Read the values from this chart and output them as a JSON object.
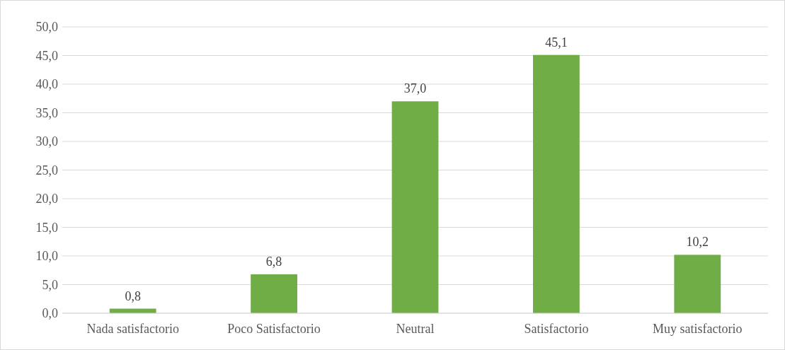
{
  "chart_data": {
    "type": "bar",
    "categories": [
      "Nada satisfactorio",
      "Poco Satisfactorio",
      "Neutral",
      "Satisfactorio",
      "Muy satisfactorio"
    ],
    "values": [
      0.8,
      6.8,
      37.0,
      45.1,
      10.2
    ],
    "value_labels": [
      "0,8",
      "6,8",
      "37,0",
      "45,1",
      "10,2"
    ],
    "color": "#70ad47",
    "ylim": [
      0,
      50
    ],
    "yticks": [
      {
        "value": 0,
        "label": "0,0"
      },
      {
        "value": 5,
        "label": "5,0"
      },
      {
        "value": 10,
        "label": "10,0"
      },
      {
        "value": 15,
        "label": "15,0"
      },
      {
        "value": 20,
        "label": "20,0"
      },
      {
        "value": 25,
        "label": "25,0"
      },
      {
        "value": 30,
        "label": "30,0"
      },
      {
        "value": 35,
        "label": "35,0"
      },
      {
        "value": 40,
        "label": "40,0"
      },
      {
        "value": 45,
        "label": "45,0"
      },
      {
        "value": 50,
        "label": "50,0"
      }
    ],
    "grid": "y"
  }
}
